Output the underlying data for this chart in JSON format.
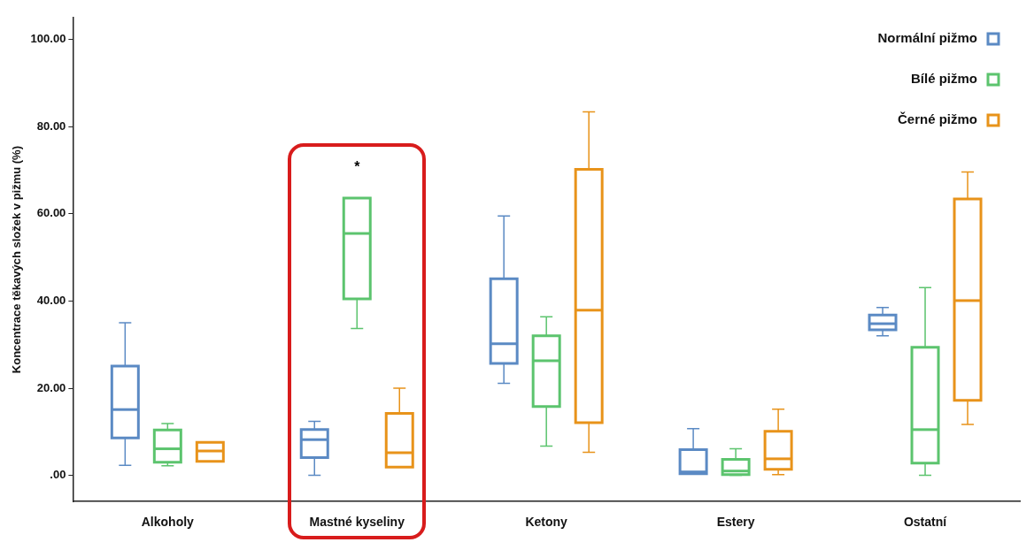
{
  "chart_data": {
    "type": "box",
    "ylabel": "Koncentrace těkavých složek v pižmu (%)",
    "categories": [
      "Alkoholy",
      "Mastné kyseliny",
      "Ketony",
      "Estery",
      "Ostatní"
    ],
    "ylim": [
      -6,
      105
    ],
    "yticks": [
      {
        "value": 0,
        "label": ".00"
      },
      {
        "value": 20,
        "label": "20.00"
      },
      {
        "value": 40,
        "label": "40.00"
      },
      {
        "value": 60,
        "label": "60.00"
      },
      {
        "value": 80,
        "label": "80.00"
      },
      {
        "value": 100,
        "label": "100.00"
      }
    ],
    "grid": false,
    "legend": "top right",
    "annotations": [
      "*"
    ],
    "series": [
      {
        "name": "Normální pižmo",
        "color": "#5b8ac4",
        "boxes": [
          {
            "low": 2.3,
            "q1": 8.6,
            "median": 15.1,
            "q3": 25.1,
            "high": 35.0
          },
          {
            "low": 0,
            "q1": 4.1,
            "median": 8.2,
            "q3": 10.5,
            "high": 12.4
          },
          {
            "low": 21.1,
            "q1": 25.7,
            "median": 30.2,
            "q3": 45.1,
            "high": 59.5
          },
          {
            "low": 0.4,
            "q1": 0.4,
            "median": 0.8,
            "q3": 5.9,
            "high": 10.7
          },
          {
            "low": 32.0,
            "q1": 33.4,
            "median": 34.8,
            "q3": 36.8,
            "high": 38.5
          }
        ]
      },
      {
        "name": "Bílé pižmo",
        "color": "#5cc46e",
        "boxes": [
          {
            "low": 2.2,
            "q1": 3.0,
            "median": 6.1,
            "q3": 10.4,
            "high": 11.9
          },
          {
            "low": 33.7,
            "q1": 40.5,
            "median": 55.5,
            "q3": 63.6,
            "high": 63.6
          },
          {
            "low": 6.7,
            "q1": 15.8,
            "median": 26.3,
            "q3": 32.0,
            "high": 36.4
          },
          {
            "low": 0,
            "q1": 0.2,
            "median": 1.0,
            "q3": 3.7,
            "high": 6.1
          },
          {
            "low": 0,
            "q1": 2.8,
            "median": 10.5,
            "q3": 29.4,
            "high": 43.1
          }
        ]
      },
      {
        "name": "Černé pižmo",
        "color": "#e8931a",
        "boxes": [
          {
            "low": 3.2,
            "q1": 3.2,
            "median": 5.6,
            "q3": 7.6,
            "high": 7.6
          },
          {
            "low": 1.9,
            "q1": 1.9,
            "median": 5.2,
            "q3": 14.2,
            "high": 20.0
          },
          {
            "low": 5.3,
            "q1": 12.1,
            "median": 37.9,
            "q3": 70.2,
            "high": 83.4
          },
          {
            "low": 0.2,
            "q1": 1.4,
            "median": 3.8,
            "q3": 10.1,
            "high": 15.2
          },
          {
            "low": 11.7,
            "q1": 17.2,
            "median": 40.1,
            "q3": 63.4,
            "high": 69.6
          }
        ]
      }
    ]
  }
}
